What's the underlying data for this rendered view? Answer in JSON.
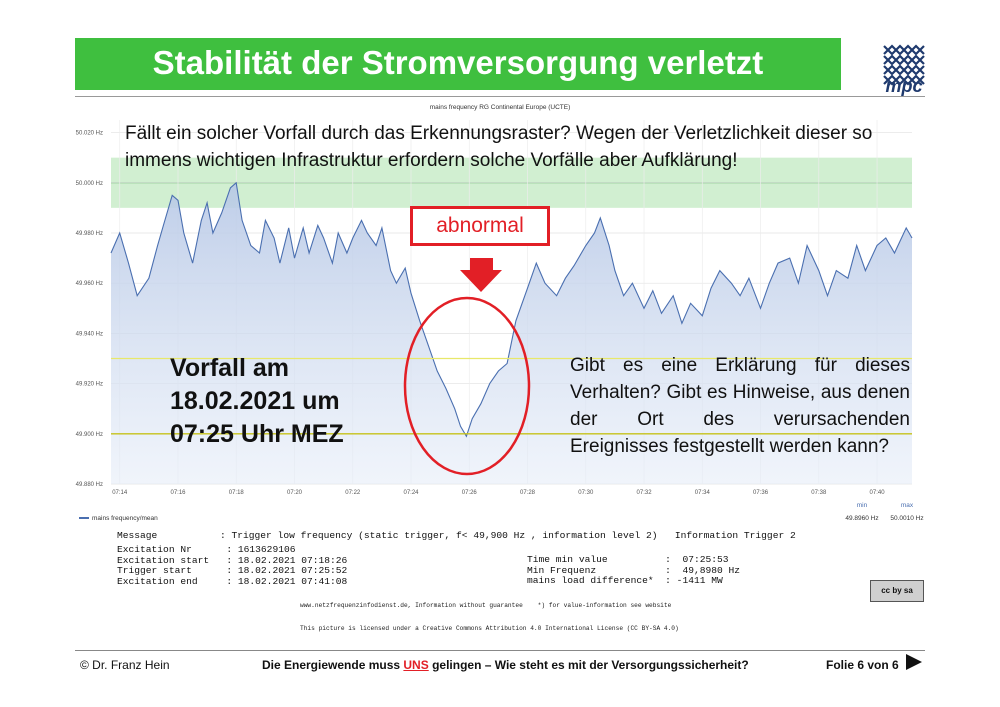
{
  "slide": {
    "title": "Stabilität der Stromversorgung verletzt",
    "logo_text": "mpc",
    "question_top": "Fällt ein solcher Vorfall durch das Erkennungsraster? Wegen der Verletzlichkeit dieser so immens wichtigen Infrastruktur erfordern solche Vorfälle aber Aufklärung!",
    "abnormal_label": "abnormal",
    "vorfall_line1": "Vorfall am",
    "vorfall_line2": "18.02.2021 um",
    "vorfall_line3": "07:25 Uhr MEZ",
    "question_right": "Gibt es eine Erklärung für dieses Verhalten? Gibt es Hinweise, aus denen der Ort des verursachenden Ereignisses festgestellt werden kann?"
  },
  "info": {
    "message_label": "Message",
    "message_value": ": Trigger low frequency (static trigger, f< 49,900 Hz , information level 2)   Information Trigger 2",
    "rows_left": [
      "Excitation Nr      : 1613629106",
      "Excitation start   : 18.02.2021 07:18:26",
      "Trigger start      : 18.02.2021 07:25:52",
      "Excitation end     : 18.02.2021 07:41:08"
    ],
    "rows_right": [
      "Time min value          :  07:25:53",
      "Min Frequenz            :  49,8980 Hz",
      "mains load difference*  : -1411 MW"
    ],
    "footnote_line1": "www.netzfrequenzinfodienst.de, Information without guarantee    *) for value-information see website",
    "footnote_line2": "This picture is licensed under a Creative Commons Attribution 4.0 International License (CC BY-SA 4.0)",
    "cc_label": "cc by sa"
  },
  "footer": {
    "author": "©  Dr. Franz Hein",
    "text_before": "Die Energiewende muss ",
    "text_uns": "UNS",
    "text_after": " gelingen – Wie steht es mit der Versorgungssicherheit?",
    "page": "Folie 6 von 6"
  },
  "colors": {
    "title_green": "#3fbf3f",
    "accent_red": "#e21f26",
    "series_blue": "#4a6fb0",
    "band_green": "#c9ecc9",
    "trigger_yellow": "#e8e86a"
  },
  "chart_data": {
    "type": "area",
    "title": "mains frequency RG Continental Europe (UCTE)",
    "xlabel": "",
    "ylabel": "",
    "y_unit": "Hz",
    "ylim": [
      49.88,
      50.025
    ],
    "y_ticks": [
      50.02,
      50.0,
      49.98,
      49.96,
      49.94,
      49.92,
      49.9,
      49.88
    ],
    "y_tick_labels": [
      "50.020 Hz",
      "50.000 Hz",
      "49.980 Hz",
      "49.960 Hz",
      "49.940 Hz",
      "49.920 Hz",
      "49.900 Hz",
      "49.880 Hz"
    ],
    "x_ticks": [
      "07:14",
      "07:16",
      "07:18",
      "07:20",
      "07:22",
      "07:24",
      "07:26",
      "07:28",
      "07:30",
      "07:32",
      "07:34",
      "07:36",
      "07:38",
      "07:40"
    ],
    "x_tick_minutes": [
      14,
      16,
      18,
      20,
      22,
      24,
      26,
      28,
      30,
      32,
      34,
      36,
      38,
      40
    ],
    "x_range_minutes": [
      13.7,
      41.2
    ],
    "green_band": [
      49.99,
      50.01
    ],
    "trigger_lines": [
      49.93,
      49.9
    ],
    "grid": true,
    "legend": "bottom-left",
    "series": [
      {
        "name": "mains frequency/mean",
        "x": [
          13.7,
          14.0,
          14.3,
          14.6,
          15.0,
          15.3,
          15.5,
          15.8,
          16.0,
          16.2,
          16.5,
          16.8,
          17.0,
          17.2,
          17.5,
          17.8,
          18.0,
          18.2,
          18.5,
          18.8,
          19.0,
          19.3,
          19.5,
          19.8,
          20.0,
          20.3,
          20.5,
          20.8,
          21.0,
          21.3,
          21.5,
          21.8,
          22.0,
          22.3,
          22.5,
          22.8,
          23.0,
          23.3,
          23.5,
          23.8,
          24.0,
          24.3,
          24.6,
          24.9,
          25.2,
          25.5,
          25.7,
          25.9,
          26.1,
          26.4,
          26.7,
          27.0,
          27.3,
          27.6,
          28.0,
          28.3,
          28.6,
          29.0,
          29.3,
          29.6,
          30.0,
          30.3,
          30.5,
          30.8,
          31.0,
          31.3,
          31.6,
          32.0,
          32.3,
          32.6,
          33.0,
          33.3,
          33.6,
          34.0,
          34.3,
          34.6,
          35.0,
          35.3,
          35.6,
          36.0,
          36.3,
          36.6,
          37.0,
          37.3,
          37.6,
          38.0,
          38.3,
          38.6,
          39.0,
          39.3,
          39.6,
          40.0,
          40.3,
          40.6,
          41.0,
          41.2
        ],
        "values": [
          49.972,
          49.98,
          49.968,
          49.955,
          49.962,
          49.975,
          49.983,
          49.995,
          49.993,
          49.98,
          49.968,
          49.985,
          49.992,
          49.98,
          49.988,
          49.998,
          50.0,
          49.985,
          49.975,
          49.972,
          49.985,
          49.978,
          49.968,
          49.982,
          49.97,
          49.982,
          49.972,
          49.983,
          49.978,
          49.968,
          49.98,
          49.972,
          49.978,
          49.985,
          49.98,
          49.975,
          49.982,
          49.965,
          49.96,
          49.966,
          49.956,
          49.945,
          49.935,
          49.925,
          49.918,
          49.91,
          49.903,
          49.899,
          49.906,
          49.912,
          49.92,
          49.925,
          49.928,
          49.945,
          49.958,
          49.968,
          49.96,
          49.955,
          49.962,
          49.967,
          49.975,
          49.98,
          49.986,
          49.975,
          49.965,
          49.955,
          49.96,
          49.95,
          49.957,
          49.948,
          49.955,
          49.944,
          49.952,
          49.947,
          49.958,
          49.965,
          49.96,
          49.955,
          49.962,
          49.95,
          49.96,
          49.968,
          49.97,
          49.96,
          49.975,
          49.965,
          49.955,
          49.965,
          49.962,
          49.975,
          49.965,
          49.975,
          49.978,
          49.972,
          49.982,
          49.978
        ]
      }
    ],
    "legend_entry": "mains frequency/mean",
    "min_label": "min",
    "max_label": "max",
    "min_value": "49.8960 Hz",
    "max_value": "50.0010 Hz"
  }
}
